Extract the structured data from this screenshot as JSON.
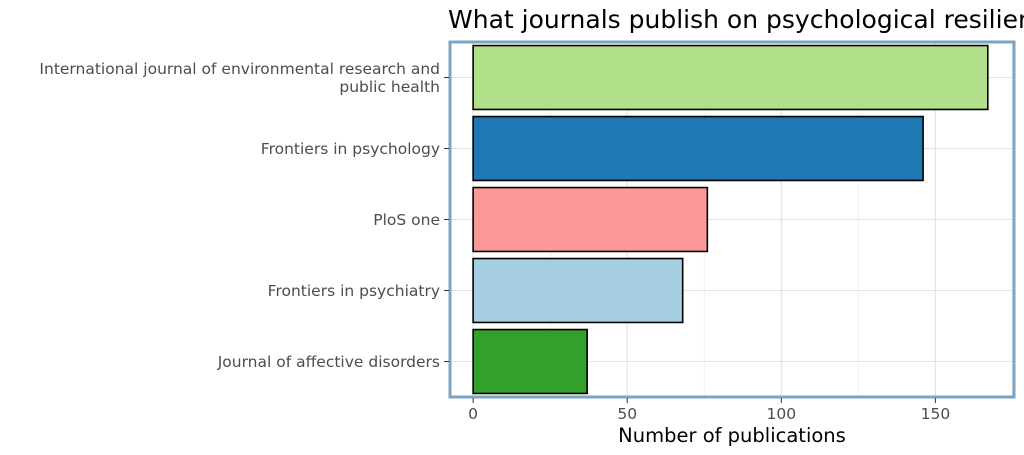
{
  "chart_data": {
    "type": "bar",
    "orientation": "horizontal",
    "title": "What journals publish on psychological resilience",
    "xlabel": "Number of publications",
    "ylabel": "",
    "categories": [
      [
        "International journal of environmental research and",
        "public health"
      ],
      [
        "Frontiers in psychology"
      ],
      [
        "PloS one"
      ],
      [
        "Frontiers in psychiatry"
      ],
      [
        "Journal of affective disorders"
      ]
    ],
    "values": [
      167,
      146,
      76,
      68,
      37
    ],
    "colors": [
      "#b2df8a",
      "#1f78b4",
      "#fb9a99",
      "#a6cee3",
      "#33a02c"
    ],
    "xlim": [
      -7.5,
      175.5
    ],
    "xticks": [
      0,
      50,
      100,
      150
    ],
    "grid": true,
    "panel_border_color": "#7ba3c3"
  }
}
